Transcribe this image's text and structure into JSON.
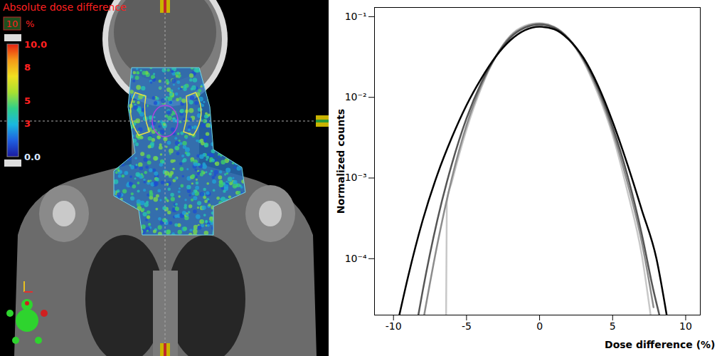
{
  "chart_data": {
    "type": "line",
    "log": "y",
    "xlabel": "Dose difference (%)",
    "ylabel": "Normalized counts",
    "xlim": [
      -11.3,
      11
    ],
    "xticks": [
      -10,
      -5,
      0,
      5,
      10
    ],
    "ylim": [
      2e-05,
      0.13
    ],
    "yticks": [
      {
        "value": 0.0001,
        "label": "10⁻⁴"
      },
      {
        "value": 0.001,
        "label": "10⁻³"
      },
      {
        "value": 0.01,
        "label": "10⁻²"
      },
      {
        "value": 0.1,
        "label": "10⁻¹"
      }
    ],
    "series": [
      {
        "color": "#000000",
        "x": [
          -9.6,
          -9,
          -8,
          -7,
          -6,
          -5,
          -4,
          -3,
          -2,
          -1,
          0,
          1,
          2,
          3,
          4,
          5,
          6,
          7,
          8,
          8.7
        ],
        "values": [
          2e-05,
          6e-05,
          0.0003,
          0.0011,
          0.0032,
          0.008,
          0.017,
          0.032,
          0.051,
          0.068,
          0.075,
          0.07,
          0.052,
          0.031,
          0.014,
          0.005,
          0.0015,
          0.0004,
          0.0001,
          2e-05
        ]
      },
      {
        "color": "#555555",
        "x": [
          -8.3,
          -8,
          -7,
          -6,
          -5,
          -4,
          -3,
          -2,
          -1,
          0,
          1,
          2,
          3,
          4,
          5,
          6,
          7,
          7.8,
          8.2
        ],
        "values": [
          2e-05,
          4e-05,
          0.0003,
          0.0015,
          0.0055,
          0.015,
          0.032,
          0.055,
          0.073,
          0.08,
          0.073,
          0.053,
          0.03,
          0.013,
          0.0043,
          0.0011,
          0.0002,
          4e-05,
          2e-05
        ]
      },
      {
        "color": "#8c8c8c",
        "x": [
          -7.9,
          -7,
          -6,
          -5,
          -4,
          -3,
          -2,
          -1,
          0,
          1,
          2,
          3,
          4,
          5,
          6,
          7,
          7.8
        ],
        "values": [
          2e-05,
          0.00015,
          0.001,
          0.0045,
          0.014,
          0.032,
          0.057,
          0.075,
          0.082,
          0.074,
          0.053,
          0.029,
          0.012,
          0.0038,
          0.0009,
          0.00016,
          2.5e-05
        ]
      },
      {
        "color": "#c8c8c8",
        "x": [
          -6.4,
          -6.35,
          -6,
          -5,
          -4,
          -3,
          -2,
          -1,
          0,
          1,
          2,
          3,
          4,
          5,
          6,
          7,
          7.6
        ],
        "values": [
          2e-05,
          0.0005,
          0.0009,
          0.004,
          0.013,
          0.032,
          0.058,
          0.077,
          0.083,
          0.075,
          0.053,
          0.028,
          0.011,
          0.0034,
          0.0007,
          0.00011,
          2e-05
        ]
      }
    ]
  },
  "image_panel": {
    "title": "Absolute dose difference",
    "scale_max": 10,
    "unit": "%",
    "colorbar": {
      "range": [
        0,
        10
      ],
      "ticks": [
        {
          "value": 10,
          "label": "10.0"
        },
        8,
        5,
        3,
        {
          "value": 0,
          "label": "0.0"
        }
      ]
    }
  }
}
